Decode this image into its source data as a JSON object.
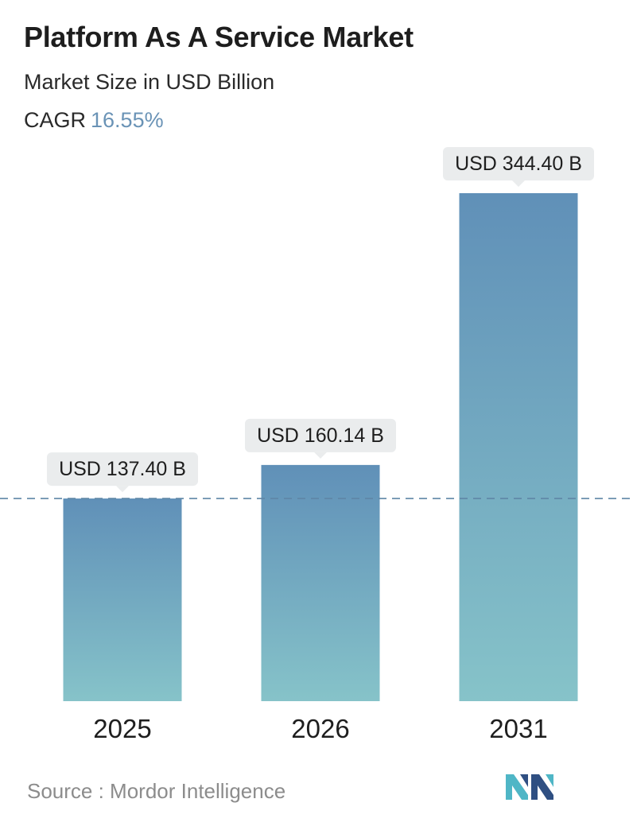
{
  "header": {
    "title": "Platform As A Service Market",
    "subtitle": "Market Size in USD Billion",
    "cagr_label": "CAGR",
    "cagr_value": "16.55%"
  },
  "chart_data": {
    "type": "bar",
    "categories": [
      "2025",
      "2026",
      "2031"
    ],
    "values": [
      137.4,
      160.14,
      344.4
    ],
    "data_labels": [
      "USD 137.40 B",
      "USD 160.14 B",
      "USD 344.40 B"
    ],
    "title": "Platform As A Service Market",
    "subtitle": "Market Size in USD Billion",
    "xlabel": "",
    "ylabel": "",
    "ylim": [
      0,
      344.4
    ],
    "grid": false,
    "reference_line": 137.4,
    "colors": {
      "bar_top": "#6090b8",
      "bar_bottom": "#86c3c9",
      "label_bg": "#eaeced",
      "dashed_line": "#5f86a6"
    }
  },
  "footer": {
    "source": "Source :  Mordor Intelligence"
  },
  "logo": {
    "icon": "mordor-intelligence-logo",
    "colors": [
      "#2f4f82",
      "#4fb6c6"
    ]
  }
}
